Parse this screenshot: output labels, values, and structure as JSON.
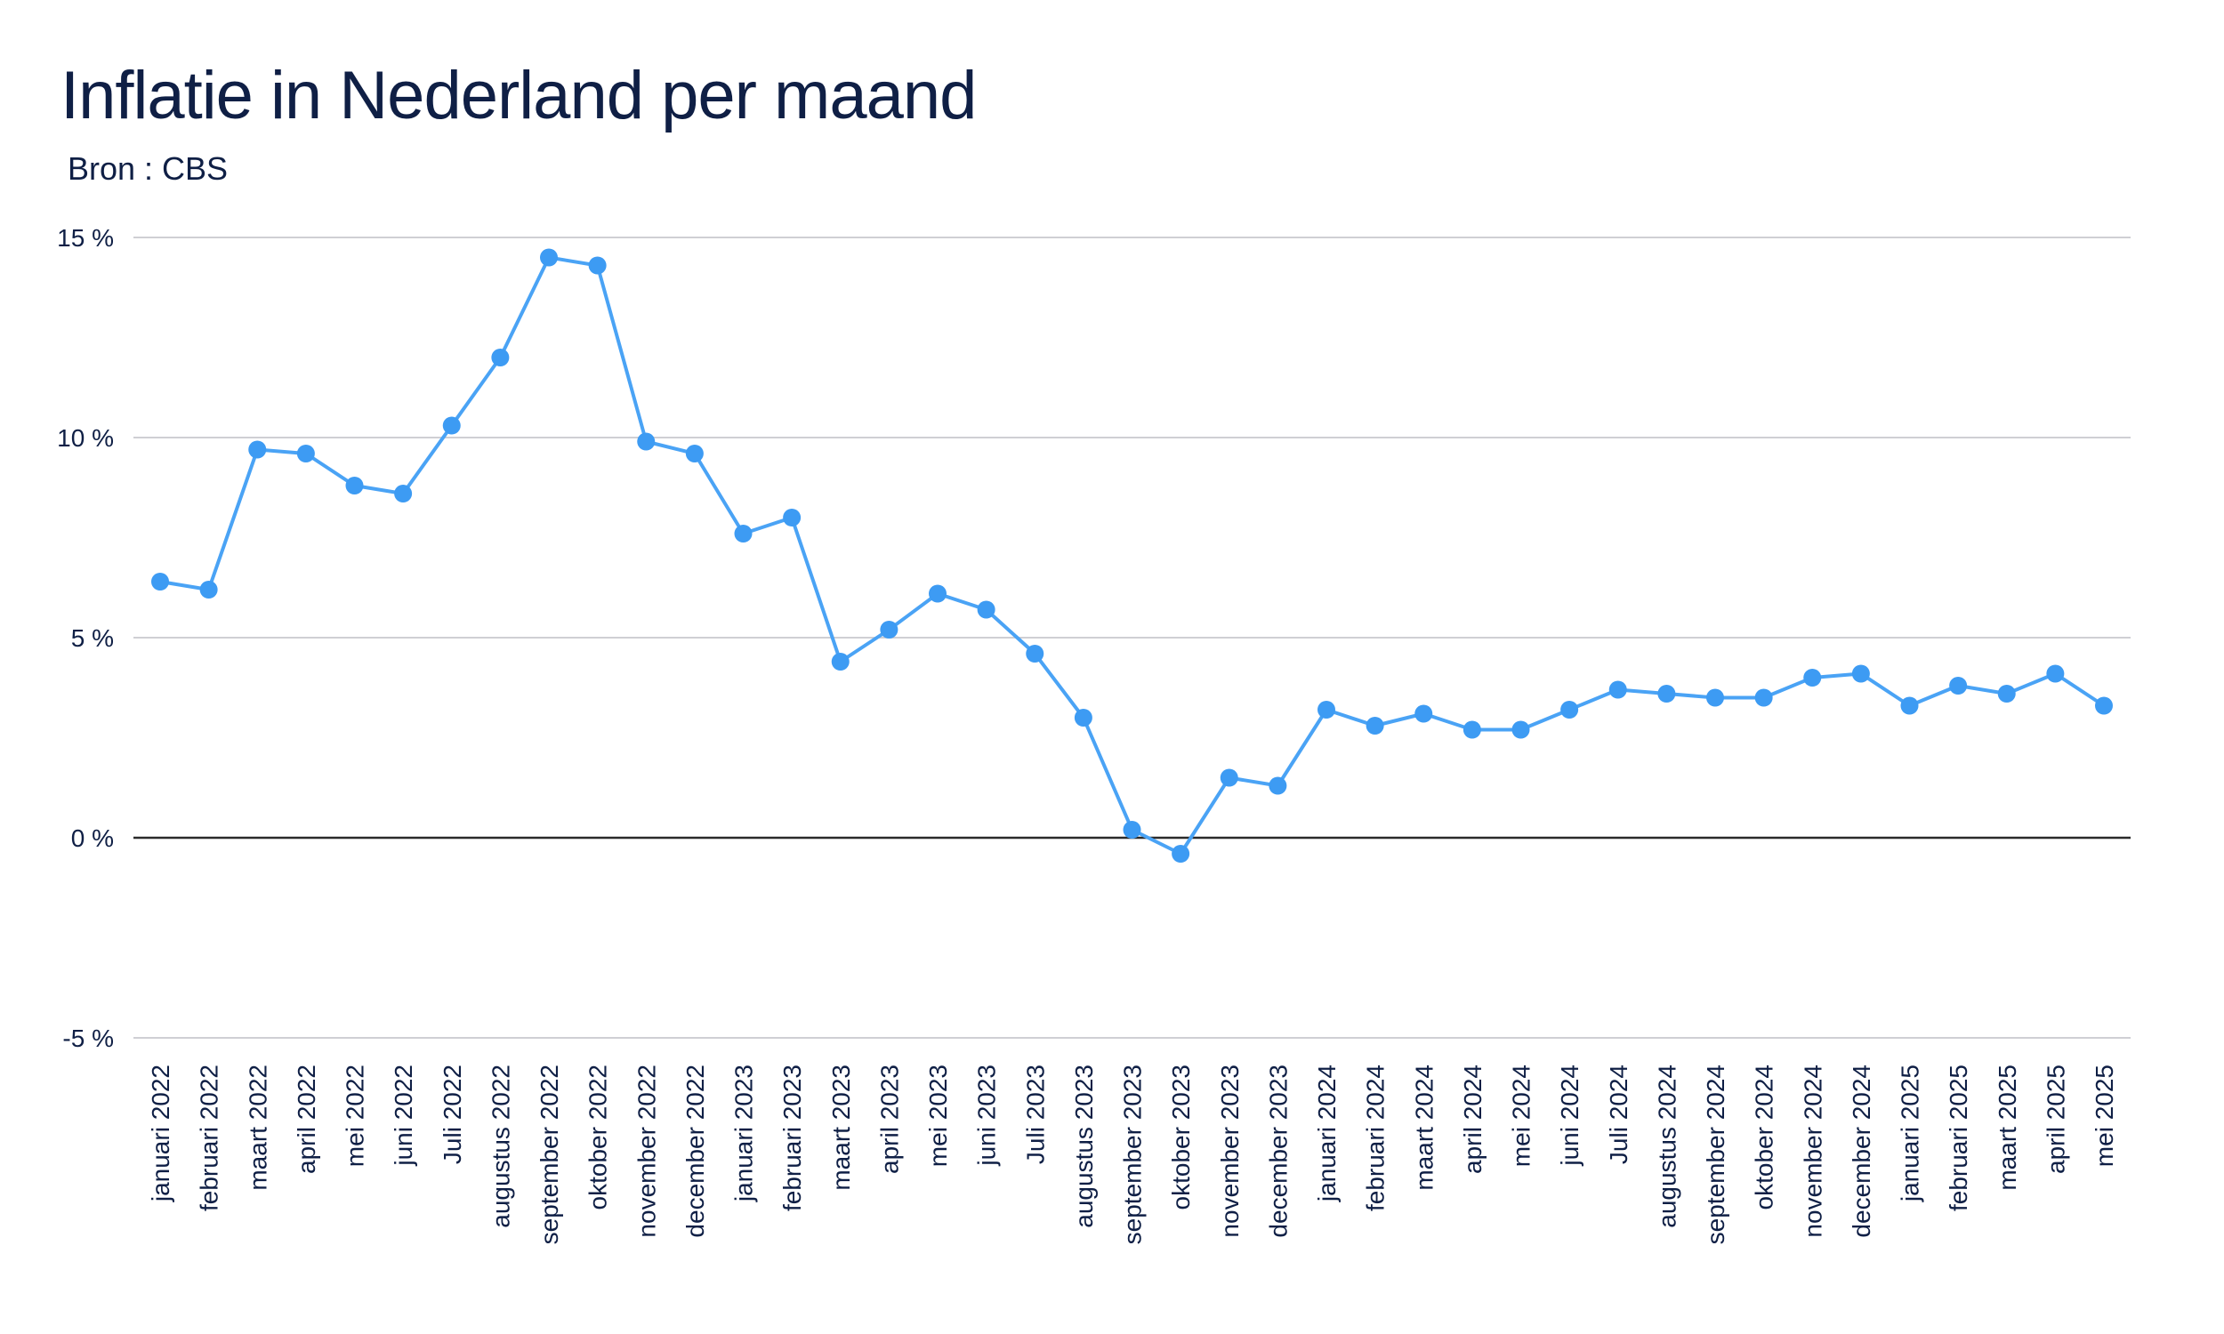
{
  "chart_data": {
    "type": "line",
    "title": "Inflatie in Nederland per maand",
    "subtitle": "Bron : CBS",
    "xlabel": "",
    "ylabel": "",
    "ylim": [
      -5,
      15
    ],
    "yticks": [
      15,
      10,
      5,
      0,
      -5
    ],
    "ytick_labels": [
      "15 %",
      "10 %",
      "5 %",
      "0 %",
      "-5 %"
    ],
    "grid": true,
    "legend": "none",
    "categories": [
      "januari 2022",
      "februari 2022",
      "maart 2022",
      "april 2022",
      "mei 2022",
      "juni 2022",
      "Juli 2022",
      "augustus 2022",
      "september 2022",
      "oktober 2022",
      "november 2022",
      "december 2022",
      "januari 2023",
      "februari 2023",
      "maart 2023",
      "april 2023",
      "mei 2023",
      "juni 2023",
      "Juli 2023",
      "augustus 2023",
      "september 2023",
      "oktober 2023",
      "november 2023",
      "december 2023",
      "januari 2024",
      "februari 2024",
      "maart 2024",
      "april 2024",
      "mei 2024",
      "juni 2024",
      "Juli 2024",
      "augustus 2024",
      "september 2024",
      "oktober 2024",
      "november 2024",
      "december 2024",
      "januari 2025",
      "februari 2025",
      "maart 2025",
      "april 2025",
      "mei 2025"
    ],
    "series": [
      {
        "values": [
          6.4,
          6.2,
          9.7,
          9.6,
          8.8,
          8.6,
          10.3,
          12.0,
          14.5,
          14.3,
          9.9,
          9.6,
          7.6,
          8.0,
          4.4,
          5.2,
          6.1,
          5.7,
          4.6,
          3.0,
          0.2,
          -0.4,
          1.5,
          1.3,
          3.2,
          2.8,
          3.1,
          2.7,
          2.7,
          3.2,
          3.7,
          3.6,
          3.5,
          3.5,
          4.0,
          4.1,
          3.3,
          3.8,
          3.6,
          4.1,
          3.3
        ]
      }
    ],
    "colors": {
      "line": "#4aa3f5",
      "marker": "#3d9bf3",
      "grid": "#cfcfd4",
      "zero_line": "#2a2a2a",
      "text": "#0f1f45"
    }
  }
}
